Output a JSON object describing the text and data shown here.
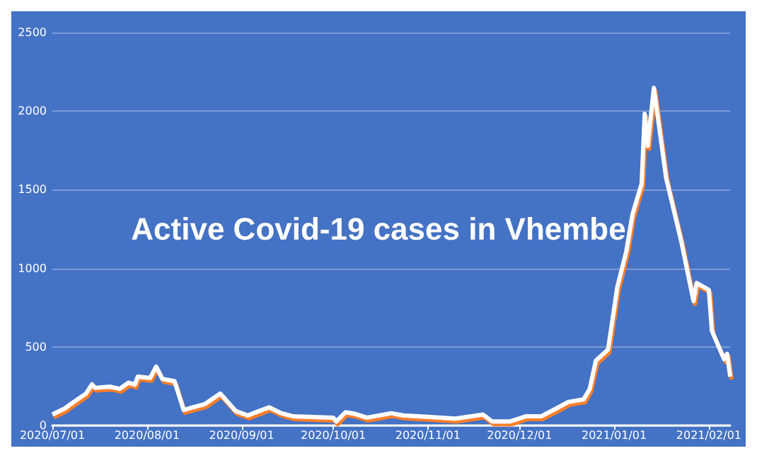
{
  "chart_data": {
    "type": "line",
    "title": "Active Covid-19 cases in Vhembe",
    "x": [
      "2020-07-01",
      "2020-07-05",
      "2020-07-08",
      "2020-07-12",
      "2020-07-14",
      "2020-07-15",
      "2020-07-20",
      "2020-07-23",
      "2020-07-26",
      "2020-07-28",
      "2020-07-29",
      "2020-08-02",
      "2020-08-04",
      "2020-08-06",
      "2020-08-10",
      "2020-08-13",
      "2020-08-20",
      "2020-08-25",
      "2020-08-30",
      "2020-09-03",
      "2020-09-06",
      "2020-09-10",
      "2020-09-14",
      "2020-09-18",
      "2020-09-23",
      "2020-10-01",
      "2020-10-02",
      "2020-10-05",
      "2020-10-08",
      "2020-10-12",
      "2020-10-20",
      "2020-10-24",
      "2020-11-01",
      "2020-11-10",
      "2020-11-19",
      "2020-11-22",
      "2020-11-28",
      "2020-12-03",
      "2020-12-08",
      "2020-12-13",
      "2020-12-17",
      "2020-12-22",
      "2020-12-24",
      "2020-12-26",
      "2020-12-30",
      "2021-01-02",
      "2021-01-05",
      "2021-01-07",
      "2021-01-10",
      "2021-01-11",
      "2021-01-12",
      "2021-01-14",
      "2021-01-18",
      "2021-01-23",
      "2021-01-27",
      "2021-01-28",
      "2021-02-01",
      "2021-02-02",
      "2021-02-06",
      "2021-02-07",
      "2021-02-08"
    ],
    "series": [
      {
        "color": "#ffffff",
        "values": [
          70,
          108,
          150,
          203,
          262,
          240,
          247,
          233,
          273,
          260,
          311,
          302,
          375,
          297,
          282,
          99,
          137,
          203,
          93,
          64,
          87,
          116,
          78,
          58,
          55,
          50,
          26,
          84,
          75,
          50,
          78,
          64,
          55,
          44,
          70,
          26,
          26,
          58,
          58,
          108,
          150,
          166,
          233,
          413,
          483,
          878,
          1110,
          1343,
          1538,
          1983,
          1779,
          2148,
          1576,
          1169,
          791,
          907,
          863,
          602,
          422,
          456,
          311
        ]
      }
    ],
    "xlim": [
      "2020-07-01",
      "2021-02-08"
    ],
    "xticks": [
      {
        "value": "2020-07-01",
        "label": "2020/07/01"
      },
      {
        "value": "2020-08-01",
        "label": "2020/08/01"
      },
      {
        "value": "2020-09-01",
        "label": "2020/09/01"
      },
      {
        "value": "2020-10-01",
        "label": "2020/10/01"
      },
      {
        "value": "2020-11-01",
        "label": "2020/11/01"
      },
      {
        "value": "2020-12-01",
        "label": "2020/12/01"
      },
      {
        "value": "2021-01-01",
        "label": "2021/01/01"
      },
      {
        "value": "2021-02-01",
        "label": "2021/02/01"
      }
    ],
    "ylim": [
      0,
      2500
    ],
    "yticks": [
      0,
      500,
      1000,
      1500,
      2000,
      2500
    ],
    "grid": "y",
    "marker": "none",
    "line_style": "solid"
  }
}
